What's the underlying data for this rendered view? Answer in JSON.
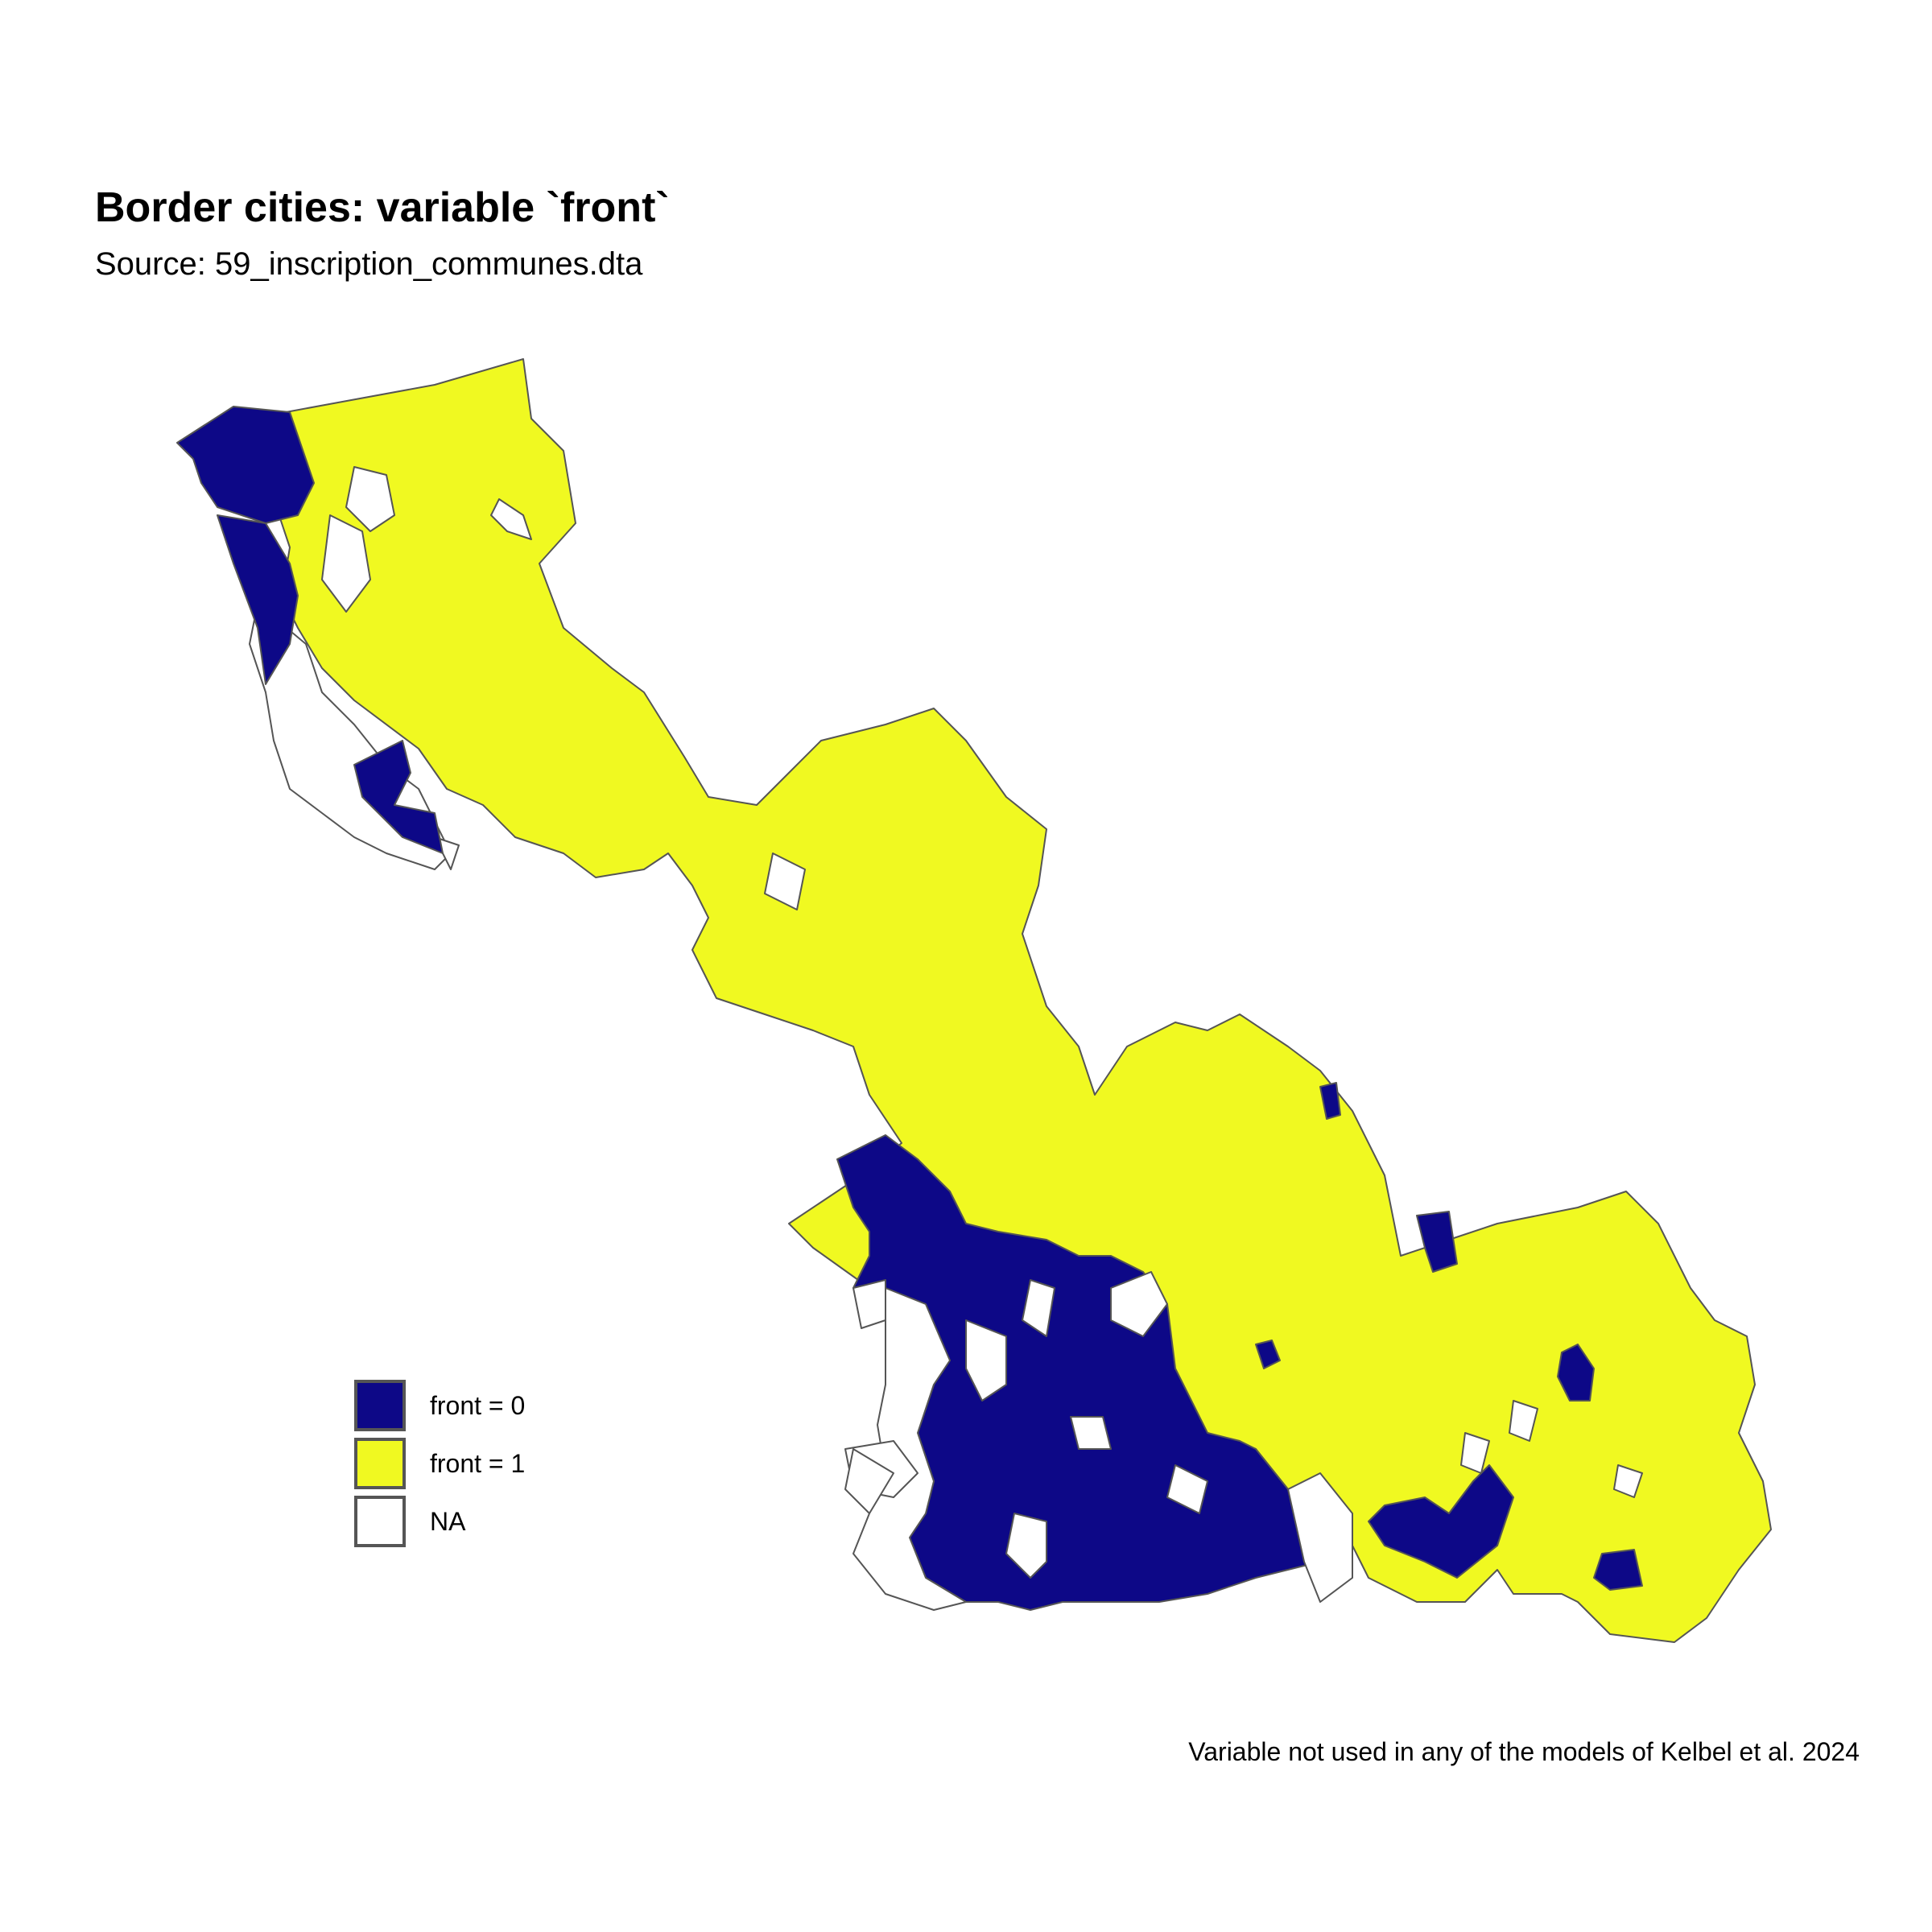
{
  "title": "Border cities: variable `front`",
  "subtitle": "Source: 59_inscription_communes.dta",
  "caption": "Variable not used in any of the models of Kelbel et al. 2024",
  "legend": [
    {
      "label": "front = 0",
      "color": "#0d0887"
    },
    {
      "label": "front = 1",
      "color": "#f0f921"
    },
    {
      "label": "NA",
      "color": "#ffffff"
    }
  ],
  "colors": {
    "front0": "#0d0887",
    "front1": "#f0f921",
    "na": "#ffffff",
    "border": "#555555"
  }
}
